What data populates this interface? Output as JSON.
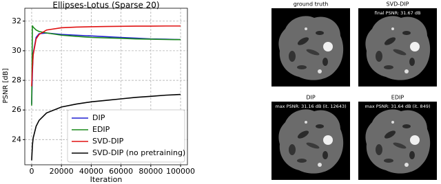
{
  "chart_data": {
    "type": "line",
    "title": "Ellipses-Lotus (Sparse 20)",
    "x_label": "Iteration",
    "y_label": "PSNR [dB]",
    "x": [
      0,
      500,
      1000,
      3000,
      5000,
      10000,
      20000,
      30000,
      40000,
      50000,
      60000,
      70000,
      80000,
      90000,
      100000
    ],
    "series": [
      {
        "name": "DIP",
        "color": "#1f1fd0",
        "values": [
          26.4,
          28.5,
          29.8,
          30.9,
          31.15,
          31.2,
          31.1,
          31.05,
          31.0,
          30.95,
          30.9,
          30.85,
          30.8,
          30.78,
          30.75
        ]
      },
      {
        "name": "EDIP",
        "color": "#1a8a1a",
        "values": [
          26.3,
          31.7,
          31.6,
          31.4,
          31.3,
          31.2,
          31.05,
          30.97,
          30.9,
          30.87,
          30.84,
          30.8,
          30.78,
          30.76,
          30.75
        ]
      },
      {
        "name": "SVD-DIP",
        "color": "#e01010",
        "values": [
          27.6,
          28.8,
          29.7,
          30.8,
          31.1,
          31.4,
          31.55,
          31.6,
          31.62,
          31.64,
          31.65,
          31.66,
          31.66,
          31.67,
          31.67
        ]
      },
      {
        "name": "SVD-DIP (no pretraining)",
        "color": "#000000",
        "values": [
          22.6,
          23.6,
          24.1,
          24.9,
          25.3,
          25.8,
          26.2,
          26.4,
          26.55,
          26.65,
          26.75,
          26.85,
          26.92,
          27.0,
          27.05
        ]
      }
    ],
    "xlim": [
      -4600,
      104600
    ],
    "xticks": [
      0,
      20000,
      40000,
      60000,
      80000,
      100000
    ],
    "ylim": [
      22.3,
      32.87
    ],
    "yticks": [
      24,
      26,
      28,
      30,
      32
    ],
    "grid": true,
    "legend": "lower right"
  },
  "panels": [
    {
      "title": "ground truth"
    },
    {
      "title": "SVD-DIP",
      "annotation": "final PSNR: 31.67 dB"
    },
    {
      "title": "DIP",
      "annotation": "max PSNR: 31.16 dB (it. 12643)"
    },
    {
      "title": "EDIP",
      "annotation": "max PSNR: 31.64 dB (it. 849)"
    }
  ]
}
